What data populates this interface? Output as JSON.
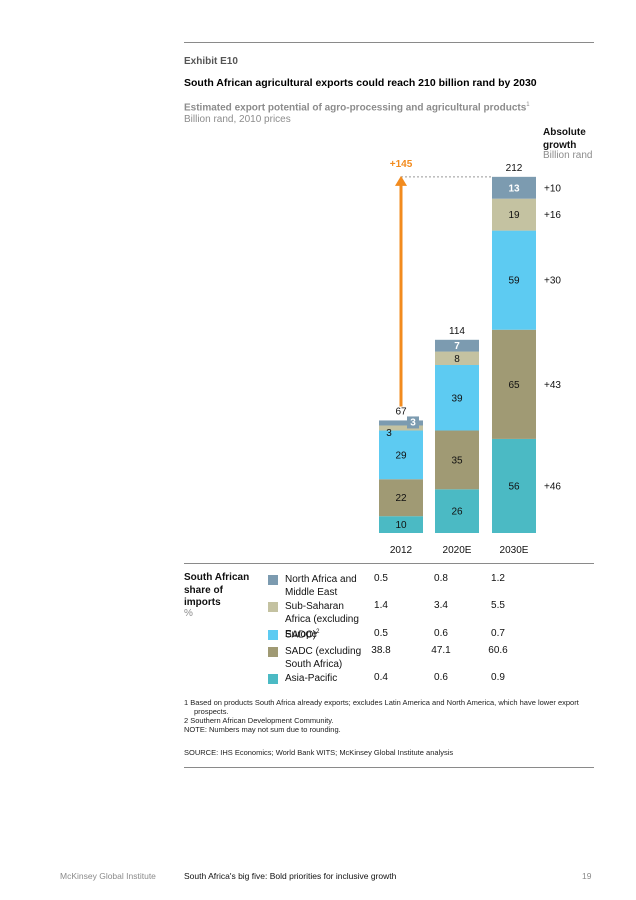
{
  "header": {
    "exhibit": "Exhibit E10",
    "title": "South African agricultural exports could reach 210 billion rand by 2030",
    "subtitle": "Estimated export potential of agro-processing and agricultural products",
    "subtitle_note": "1",
    "units": "Billion rand, 2010 prices"
  },
  "growth_header": {
    "line1": "Absolute",
    "line2": "growth",
    "unit": "Billion rand"
  },
  "chart_data": {
    "type": "bar",
    "stacked": true,
    "categories": [
      "2012",
      "2020E",
      "2030E"
    ],
    "series": [
      {
        "name": "Asia-Pacific",
        "color": "#4bbac4",
        "values": [
          10,
          26,
          56
        ]
      },
      {
        "name": "SADC (excluding South Africa)",
        "color": "#a09a74",
        "values": [
          22,
          35,
          65
        ]
      },
      {
        "name": "Europe",
        "color": "#5dcbf2",
        "values": [
          29,
          39,
          59
        ]
      },
      {
        "name": "Sub-Saharan Africa (excluding SADC)",
        "color": "#c4c2a1",
        "values": [
          3,
          8,
          19
        ]
      },
      {
        "name": "North Africa and Middle East",
        "color": "#7c9bb0",
        "values": [
          3,
          7,
          13
        ]
      }
    ],
    "totals": [
      "67",
      "114",
      "212"
    ],
    "growth": [
      "+46",
      "+43",
      "+30",
      "+16",
      "+10"
    ],
    "total_growth": "+145",
    "arrow_color": "#f28b1e"
  },
  "share": {
    "heading_lines": [
      "South African",
      "share of",
      "imports"
    ],
    "unit": "%",
    "rows": [
      {
        "label": "North Africa and Middle East",
        "values": [
          "0.5",
          "0.8",
          "1.2"
        ]
      },
      {
        "label": "Sub-Saharan Africa (excluding SADC)",
        "label_sup": "2",
        "values": [
          "1.4",
          "3.4",
          "5.5"
        ]
      },
      {
        "label": "Europe",
        "values": [
          "0.5",
          "0.6",
          "0.7"
        ]
      },
      {
        "label": "SADC (excluding South Africa)",
        "values": [
          "38.8",
          "47.1",
          "60.6"
        ]
      },
      {
        "label": "Asia-Pacific",
        "values": [
          "0.4",
          "0.6",
          "0.9"
        ]
      }
    ]
  },
  "footnotes": {
    "n1": "1  Based on products South Africa already exports; excludes Latin America and North America, which have lower export",
    "n1b": "prospects.",
    "n2": "2  Southern African Development Community.",
    "note": "NOTE: Numbers may not sum due to rounding.",
    "source": "SOURCE: IHS Economics; World Bank WITS; McKinsey Global Institute analysis"
  },
  "footer": {
    "left": "McKinsey Global Institute",
    "middle": "South Africa's big five: Bold priorities for inclusive growth",
    "page": "19"
  }
}
